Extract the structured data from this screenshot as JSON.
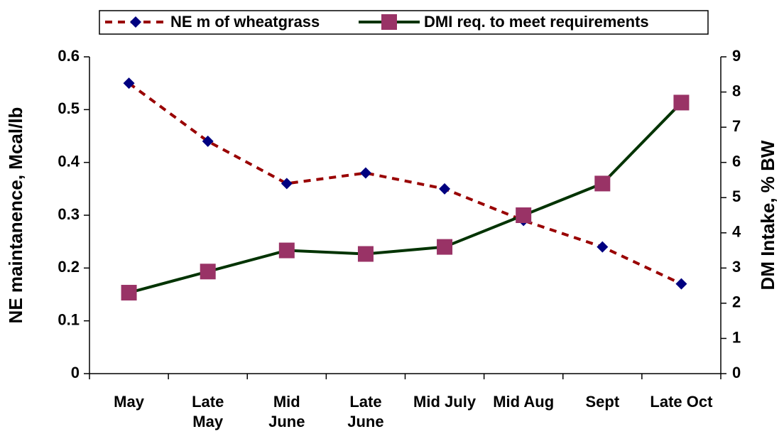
{
  "chart_data": {
    "type": "line",
    "categories": [
      "May",
      "Late\nMay",
      "Mid\nJune",
      "Late\nJune",
      "Mid July",
      "Mid Aug",
      "Sept",
      "Late Oct"
    ],
    "series": [
      {
        "name": "NE m of wheatgrass",
        "color": "#990000",
        "marker_color": "#000080",
        "marker": "diamond",
        "dash": true,
        "values": [
          0.55,
          0.44,
          0.36,
          0.38,
          0.35,
          0.29,
          0.24,
          0.17
        ]
      },
      {
        "name": "DMI req. to meet requirements",
        "color": "#003300",
        "marker_color": "#993366",
        "marker": "square",
        "dash": false,
        "axis": "y2",
        "values": [
          2.3,
          2.9,
          3.5,
          3.4,
          3.6,
          4.5,
          5.4,
          7.7
        ]
      }
    ],
    "ylabel": "NE maintanence, Mcal/lb",
    "y2label": "DM Intake, % BW",
    "ylim": [
      0,
      0.6
    ],
    "yticks": [
      0,
      0.1,
      0.2,
      0.3,
      0.4,
      0.5,
      0.6
    ],
    "y2lim": [
      0,
      9
    ],
    "y2ticks": [
      0,
      1,
      2,
      3,
      4,
      5,
      6,
      7,
      8,
      9
    ],
    "legend": "top"
  }
}
